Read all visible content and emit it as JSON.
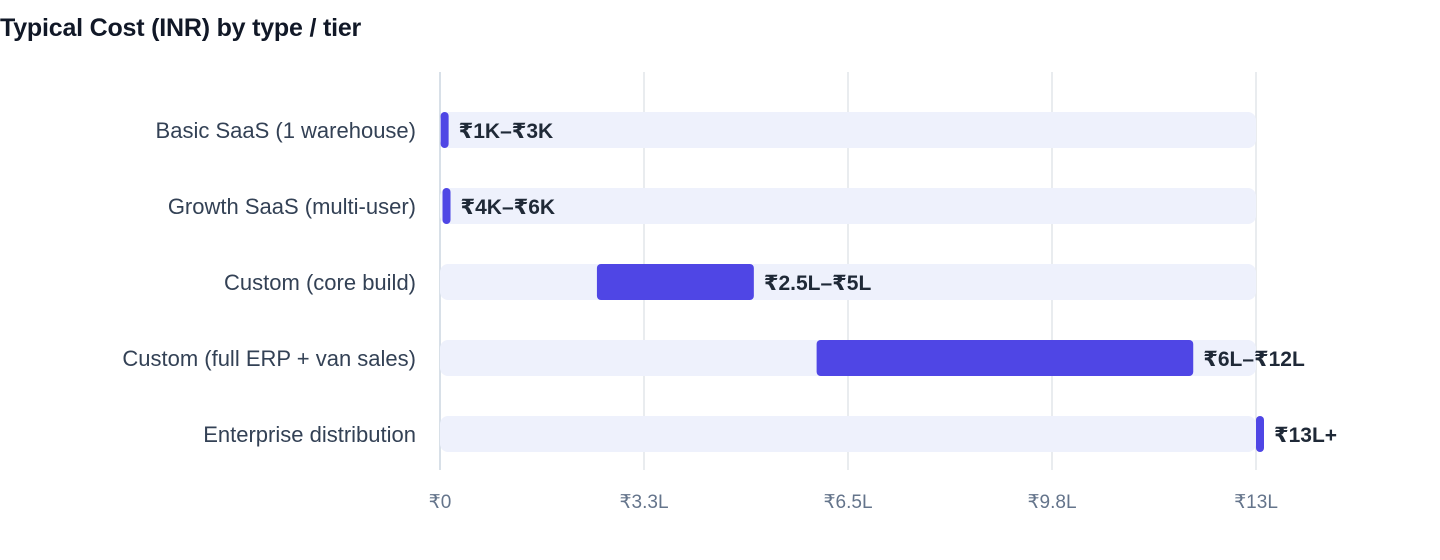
{
  "chart_data": {
    "type": "bar",
    "orientation": "horizontal",
    "style": "floating-range",
    "title": "Typical Cost (INR) by type / tier",
    "xlabel": "",
    "ylabel": "",
    "xlim": [
      0,
      1300000
    ],
    "ticks": [
      {
        "value": 0,
        "label": "₹0"
      },
      {
        "value": 325000,
        "label": "₹3.3L"
      },
      {
        "value": 650000,
        "label": "₹6.5L"
      },
      {
        "value": 975000,
        "label": "₹9.8L"
      },
      {
        "value": 1300000,
        "label": "₹13L"
      }
    ],
    "grid": true,
    "legend": "none",
    "categories": [
      "Basic SaaS (1 warehouse)",
      "Growth SaaS (multi-user)",
      "Custom (core build)",
      "Custom (full ERP + van sales)",
      "Enterprise distribution"
    ],
    "ranges": [
      {
        "low": 1000,
        "high": 3000,
        "label": "₹1K–₹3K"
      },
      {
        "low": 4000,
        "high": 6000,
        "label": "₹4K–₹6K"
      },
      {
        "low": 250000,
        "high": 500000,
        "label": "₹2.5L–₹5L"
      },
      {
        "low": 600000,
        "high": 1200000,
        "label": "₹6L–₹12L"
      },
      {
        "low": 1300000,
        "high": 1300000,
        "label": "₹13L+"
      }
    ],
    "colors": {
      "range": "#4f46e5",
      "track": "#eef1fc",
      "grid": "#e2e5ea",
      "axis": "#cbd5e1"
    }
  }
}
